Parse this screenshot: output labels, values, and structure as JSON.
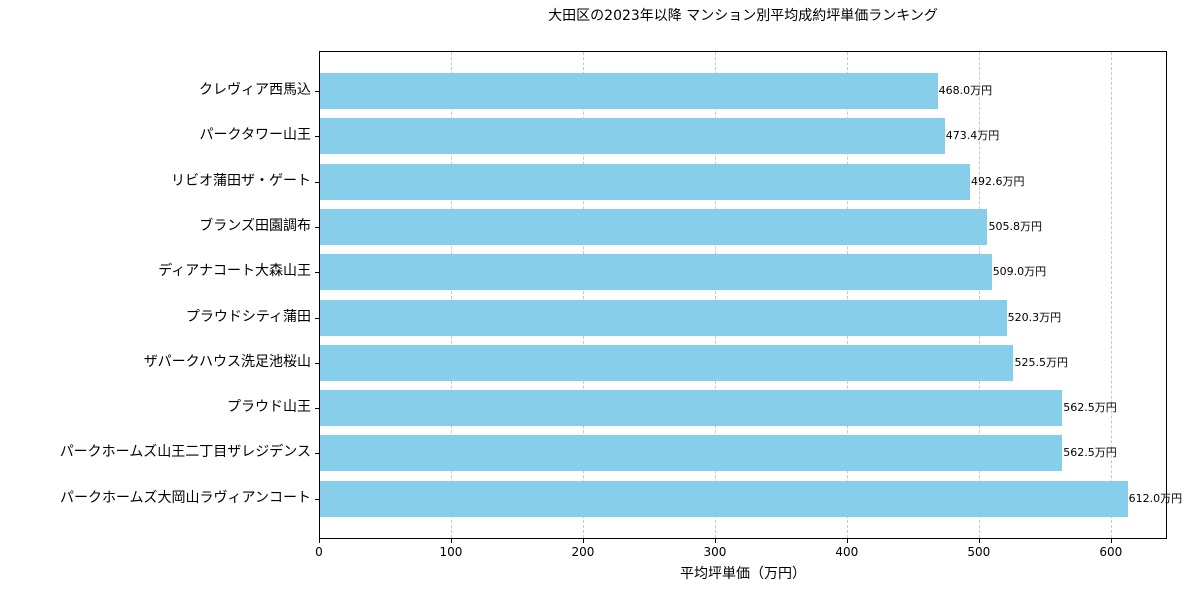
{
  "chart_data": {
    "type": "bar",
    "orientation": "horizontal",
    "title": "大田区の2023年以降 マンション別平均成約坪単価ランキング",
    "xlabel": "平均坪単価（万円）",
    "ylabel": "",
    "xlim": [
      0,
      642.6
    ],
    "xticks": [
      0,
      100,
      200,
      300,
      400,
      500,
      600
    ],
    "grid": {
      "x": true,
      "y": false,
      "style": "dashed"
    },
    "bar_color": "#87ceeb",
    "value_suffix": "万円",
    "categories": [
      "クレヴィア西馬込",
      "パークタワー山王",
      "リビオ蒲田ザ・ゲート",
      "ブランズ田園調布",
      "ディアナコート大森山王",
      "プラウドシティ蒲田",
      "ザパークハウス洗足池桜山",
      "プラウド山王",
      "パークホームズ山王二丁目ザレジデンス",
      "パークホームズ大岡山ラヴィアンコート"
    ],
    "values": [
      468.0,
      473.4,
      492.6,
      505.8,
      509.0,
      520.3,
      525.5,
      562.5,
      562.5,
      612.0
    ],
    "value_labels": [
      "468.0万円",
      "473.4万円",
      "492.6万円",
      "505.8万円",
      "509.0万円",
      "520.3万円",
      "525.5万円",
      "562.5万円",
      "562.5万円",
      "612.0万円"
    ],
    "legend": null
  }
}
